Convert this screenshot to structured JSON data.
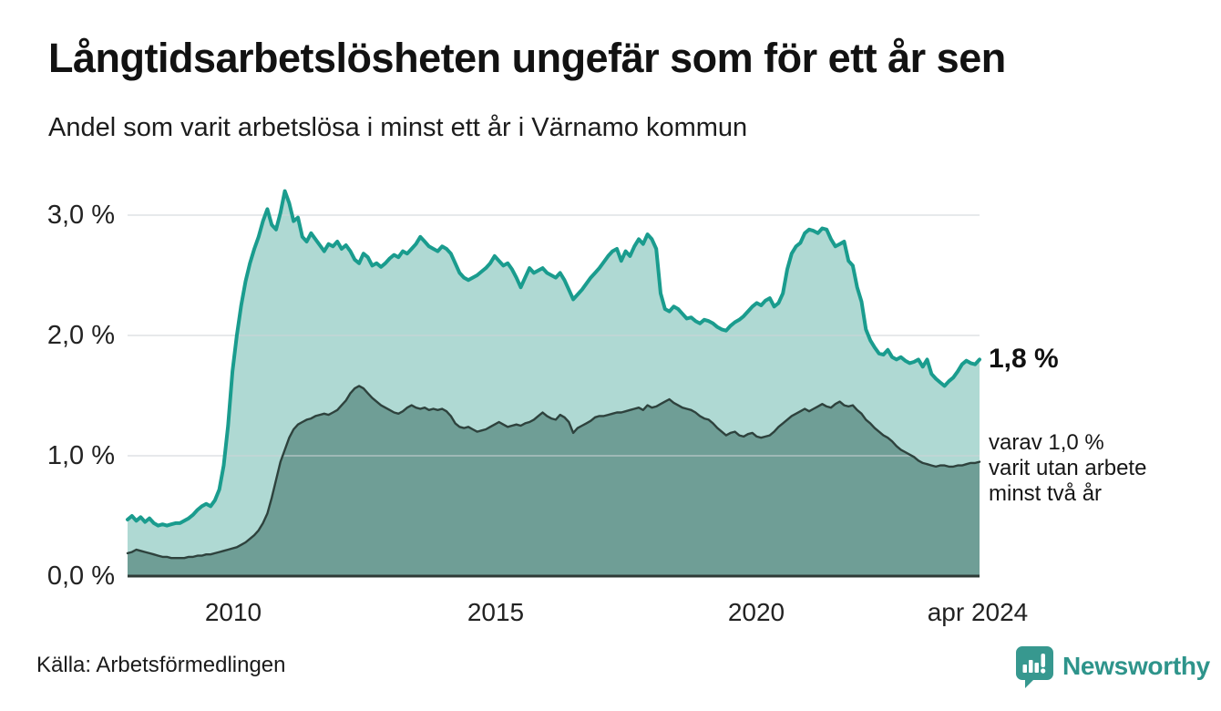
{
  "header": {
    "title": "Långtidsarbetslösheten ungefär som för ett år sen",
    "subtitle": "Andel som varit arbetslösa i minst ett år i Värnamo kommun"
  },
  "chart_data": {
    "type": "area",
    "title": "Långtidsarbetslösheten ungefär som för ett år sen",
    "subtitle": "Andel som varit arbetslösa i minst ett år i Värnamo kommun",
    "unit": "%",
    "ylim": [
      0,
      3.3
    ],
    "grid_values": [
      1.0,
      2.0,
      3.0
    ],
    "y_ticks": [
      {
        "label": "3,0 %",
        "value": 3.0
      },
      {
        "label": "2,0 %",
        "value": 2.0
      },
      {
        "label": "1,0 %",
        "value": 1.0
      },
      {
        "label": "0,0 %",
        "value": 0.0
      }
    ],
    "x_ticks": [
      {
        "label": "2010"
      },
      {
        "label": "2015"
      },
      {
        "label": "2020"
      },
      {
        "label": "apr 2024"
      }
    ],
    "x_start_year": 2008.0,
    "x_end_year": 2024.33,
    "points_per_year": 12,
    "series": [
      {
        "name": "arbetslösa minst ett år",
        "line_color": "#1a9c8e",
        "fill_color": "#afd9d3",
        "end_value": 1.8,
        "values": [
          0.47,
          0.5,
          0.46,
          0.49,
          0.45,
          0.48,
          0.44,
          0.42,
          0.43,
          0.42,
          0.43,
          0.44,
          0.44,
          0.46,
          0.48,
          0.51,
          0.55,
          0.58,
          0.6,
          0.58,
          0.63,
          0.72,
          0.92,
          1.25,
          1.7,
          2.0,
          2.25,
          2.45,
          2.6,
          2.72,
          2.82,
          2.95,
          3.05,
          2.92,
          2.88,
          3.02,
          3.2,
          3.1,
          2.95,
          2.98,
          2.82,
          2.78,
          2.85,
          2.8,
          2.75,
          2.7,
          2.76,
          2.74,
          2.78,
          2.72,
          2.75,
          2.7,
          2.63,
          2.6,
          2.68,
          2.65,
          2.58,
          2.6,
          2.57,
          2.6,
          2.64,
          2.67,
          2.65,
          2.7,
          2.68,
          2.72,
          2.76,
          2.82,
          2.78,
          2.74,
          2.72,
          2.7,
          2.74,
          2.72,
          2.68,
          2.6,
          2.52,
          2.48,
          2.46,
          2.48,
          2.5,
          2.53,
          2.56,
          2.6,
          2.66,
          2.62,
          2.58,
          2.6,
          2.55,
          2.48,
          2.4,
          2.48,
          2.56,
          2.52,
          2.54,
          2.56,
          2.52,
          2.5,
          2.48,
          2.52,
          2.46,
          2.38,
          2.3,
          2.34,
          2.38,
          2.43,
          2.48,
          2.52,
          2.56,
          2.61,
          2.66,
          2.7,
          2.72,
          2.62,
          2.7,
          2.66,
          2.74,
          2.8,
          2.76,
          2.84,
          2.8,
          2.72,
          2.35,
          2.22,
          2.2,
          2.24,
          2.22,
          2.18,
          2.14,
          2.15,
          2.12,
          2.1,
          2.13,
          2.12,
          2.1,
          2.07,
          2.05,
          2.04,
          2.08,
          2.11,
          2.13,
          2.16,
          2.2,
          2.24,
          2.27,
          2.25,
          2.29,
          2.31,
          2.24,
          2.27,
          2.35,
          2.55,
          2.68,
          2.74,
          2.77,
          2.85,
          2.88,
          2.87,
          2.85,
          2.89,
          2.88,
          2.8,
          2.74,
          2.76,
          2.78,
          2.62,
          2.58,
          2.4,
          2.28,
          2.05,
          1.96,
          1.9,
          1.85,
          1.84,
          1.88,
          1.82,
          1.8,
          1.82,
          1.79,
          1.77,
          1.78,
          1.8,
          1.74,
          1.8,
          1.68,
          1.64,
          1.61,
          1.58,
          1.62,
          1.65,
          1.7,
          1.76,
          1.79,
          1.77,
          1.76,
          1.8
        ]
      },
      {
        "name": "varav utan arbete minst två år",
        "line_color": "#2e423d",
        "fill_color": "#6f9e96",
        "end_value": 1.0,
        "values": [
          0.19,
          0.2,
          0.22,
          0.21,
          0.2,
          0.19,
          0.18,
          0.17,
          0.16,
          0.16,
          0.15,
          0.15,
          0.15,
          0.15,
          0.16,
          0.16,
          0.17,
          0.17,
          0.18,
          0.18,
          0.19,
          0.2,
          0.21,
          0.22,
          0.23,
          0.24,
          0.26,
          0.28,
          0.31,
          0.34,
          0.38,
          0.44,
          0.52,
          0.65,
          0.8,
          0.95,
          1.05,
          1.15,
          1.22,
          1.26,
          1.28,
          1.3,
          1.31,
          1.33,
          1.34,
          1.35,
          1.34,
          1.36,
          1.38,
          1.42,
          1.46,
          1.52,
          1.56,
          1.58,
          1.56,
          1.52,
          1.48,
          1.45,
          1.42,
          1.4,
          1.38,
          1.36,
          1.35,
          1.37,
          1.4,
          1.42,
          1.4,
          1.39,
          1.4,
          1.38,
          1.39,
          1.38,
          1.39,
          1.37,
          1.33,
          1.27,
          1.24,
          1.23,
          1.24,
          1.22,
          1.2,
          1.21,
          1.22,
          1.24,
          1.26,
          1.28,
          1.26,
          1.24,
          1.25,
          1.26,
          1.25,
          1.27,
          1.28,
          1.3,
          1.33,
          1.36,
          1.33,
          1.31,
          1.3,
          1.34,
          1.32,
          1.28,
          1.19,
          1.23,
          1.25,
          1.27,
          1.29,
          1.32,
          1.33,
          1.33,
          1.34,
          1.35,
          1.36,
          1.36,
          1.37,
          1.38,
          1.39,
          1.4,
          1.38,
          1.42,
          1.4,
          1.41,
          1.43,
          1.45,
          1.47,
          1.44,
          1.42,
          1.4,
          1.39,
          1.38,
          1.36,
          1.33,
          1.31,
          1.3,
          1.27,
          1.23,
          1.2,
          1.17,
          1.19,
          1.2,
          1.17,
          1.16,
          1.18,
          1.19,
          1.16,
          1.15,
          1.16,
          1.17,
          1.2,
          1.24,
          1.27,
          1.3,
          1.33,
          1.35,
          1.37,
          1.39,
          1.37,
          1.39,
          1.41,
          1.43,
          1.41,
          1.4,
          1.43,
          1.45,
          1.42,
          1.41,
          1.42,
          1.38,
          1.35,
          1.3,
          1.27,
          1.23,
          1.2,
          1.17,
          1.15,
          1.12,
          1.08,
          1.05,
          1.03,
          1.01,
          0.99,
          0.96,
          0.94,
          0.93,
          0.92,
          0.91,
          0.92,
          0.92,
          0.91,
          0.91,
          0.92,
          0.92,
          0.93,
          0.94,
          0.94,
          0.95
        ]
      }
    ],
    "end_labels": {
      "total": "1,8 %",
      "subset": [
        "varav 1,0 %",
        "varit utan arbete",
        "minst två år"
      ]
    },
    "grid_color": "#cfd4d8",
    "baseline_color": "#2e3a36",
    "legend": "none"
  },
  "footer": {
    "source": "Källa: Arbetsförmedlingen",
    "logo_text": "Newsworthy",
    "logo_color": "#2e948b"
  }
}
